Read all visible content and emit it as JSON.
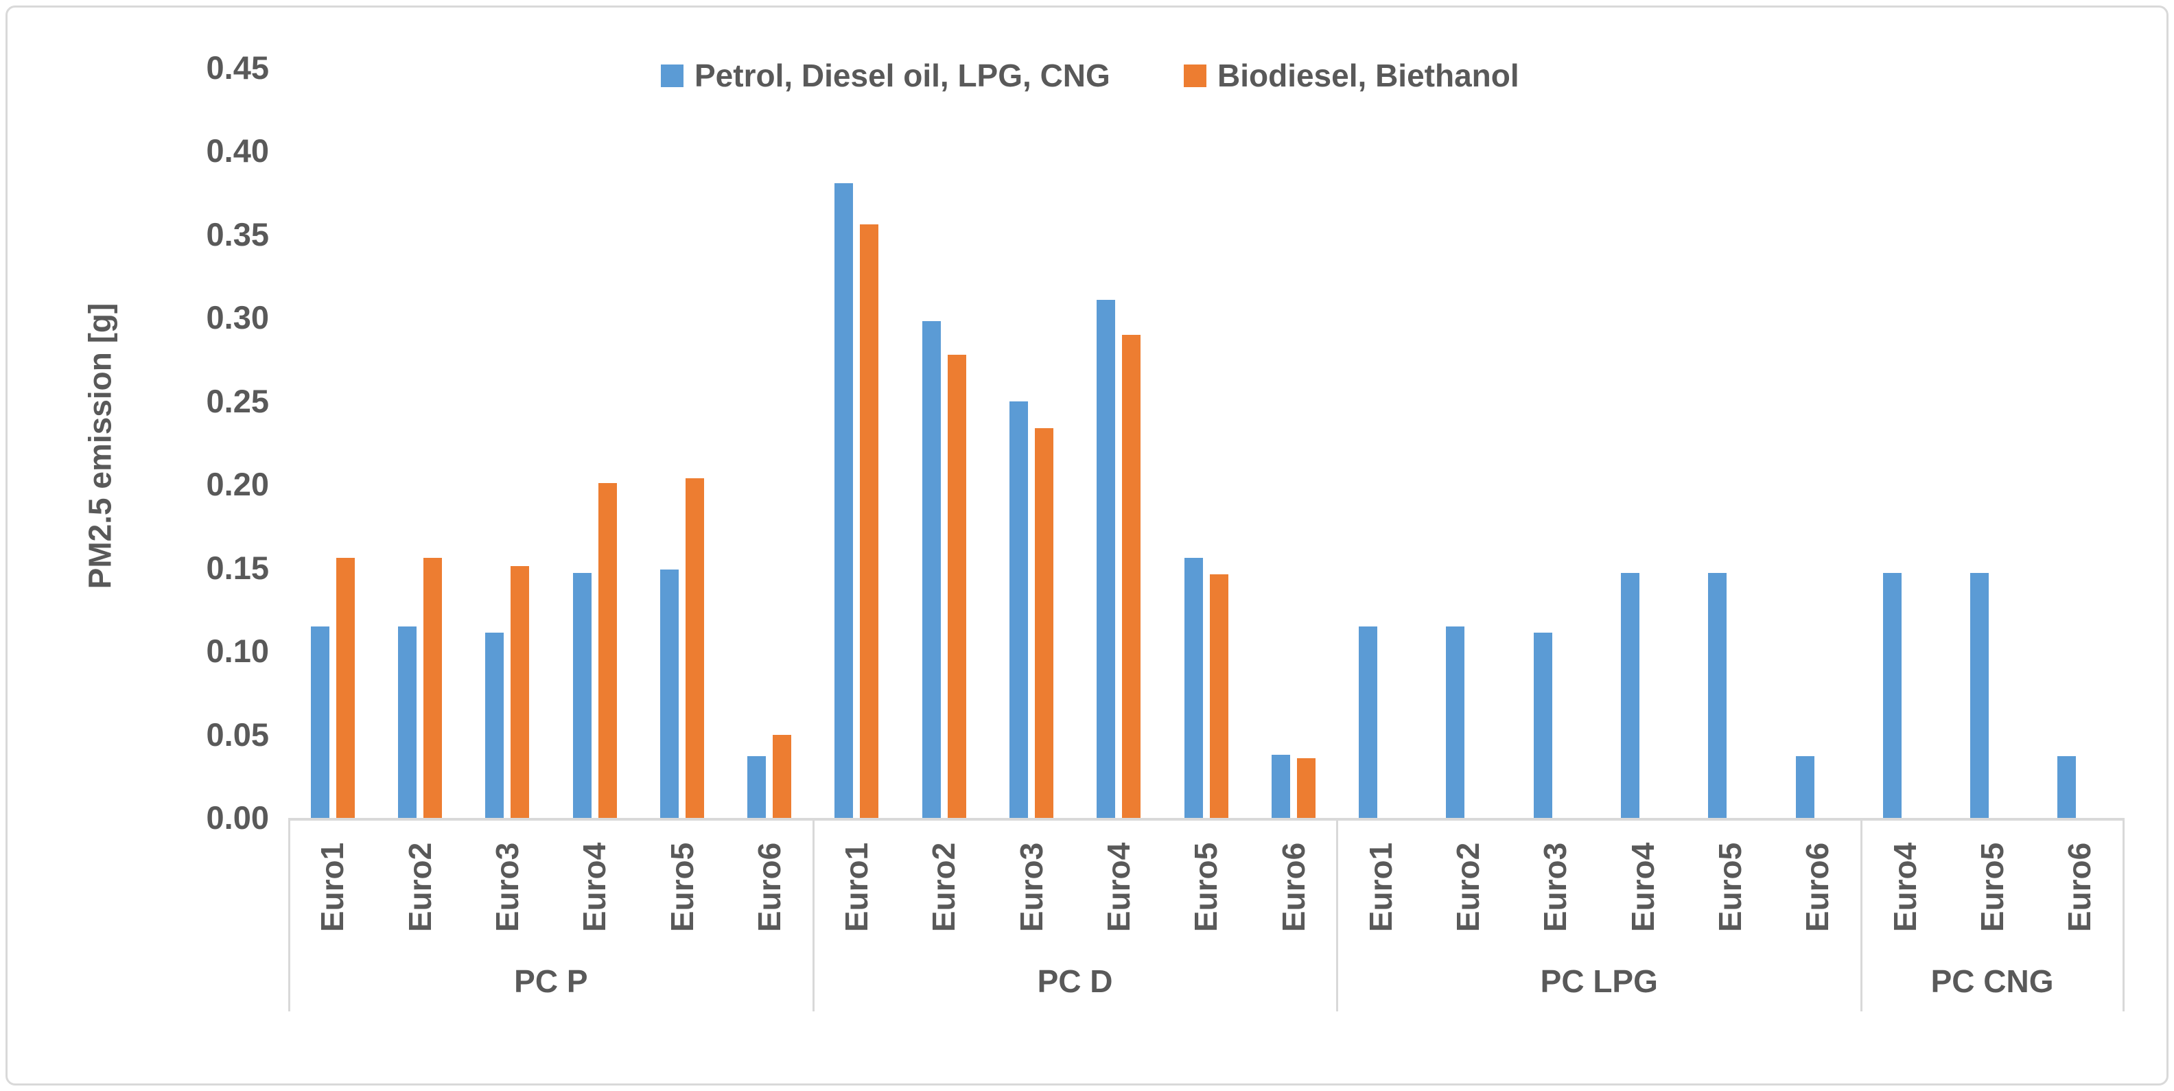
{
  "chart_data": {
    "type": "bar",
    "title": "",
    "ylabel": "PM2.5 emission [g]",
    "ylim": [
      0,
      0.45
    ],
    "ytick_step": 0.05,
    "ytick_labels": [
      "0.00",
      "0.05",
      "0.10",
      "0.15",
      "0.20",
      "0.25",
      "0.30",
      "0.35",
      "0.40",
      "0.45"
    ],
    "grid": false,
    "legend_position": "top-center",
    "series_meta": [
      {
        "key": "fossil",
        "name": "Petrol, Diesel oil, LPG, CNG",
        "color": "#5B9BD5"
      },
      {
        "key": "bio",
        "name": "Biodiesel, Biethanol",
        "color": "#ED7D31"
      }
    ],
    "groups": [
      {
        "label": "PC P",
        "categories": [
          "Euro1",
          "Euro2",
          "Euro3",
          "Euro4",
          "Euro5",
          "Euro6"
        ],
        "series": {
          "fossil": [
            0.115,
            0.115,
            0.111,
            0.147,
            0.149,
            0.037
          ],
          "bio": [
            0.156,
            0.156,
            0.151,
            0.201,
            0.204,
            0.05
          ]
        }
      },
      {
        "label": "PC D",
        "categories": [
          "Euro1",
          "Euro2",
          "Euro3",
          "Euro4",
          "Euro5",
          "Euro6"
        ],
        "series": {
          "fossil": [
            0.381,
            0.298,
            0.25,
            0.311,
            0.156,
            0.038
          ],
          "bio": [
            0.356,
            0.278,
            0.234,
            0.29,
            0.146,
            0.036
          ]
        }
      },
      {
        "label": "PC LPG",
        "categories": [
          "Euro1",
          "Euro2",
          "Euro3",
          "Euro4",
          "Euro5",
          "Euro6"
        ],
        "series": {
          "fossil": [
            0.115,
            0.115,
            0.111,
            0.147,
            0.147,
            0.037
          ],
          "bio": [
            null,
            null,
            null,
            null,
            null,
            null
          ]
        }
      },
      {
        "label": "PC CNG",
        "categories": [
          "Euro4",
          "Euro5",
          "Euro6"
        ],
        "series": {
          "fossil": [
            0.147,
            0.147,
            0.037
          ],
          "bio": [
            null,
            null,
            null
          ]
        }
      }
    ],
    "axis_colors": {
      "line": "#D9D9D9",
      "text": "#595959"
    }
  }
}
